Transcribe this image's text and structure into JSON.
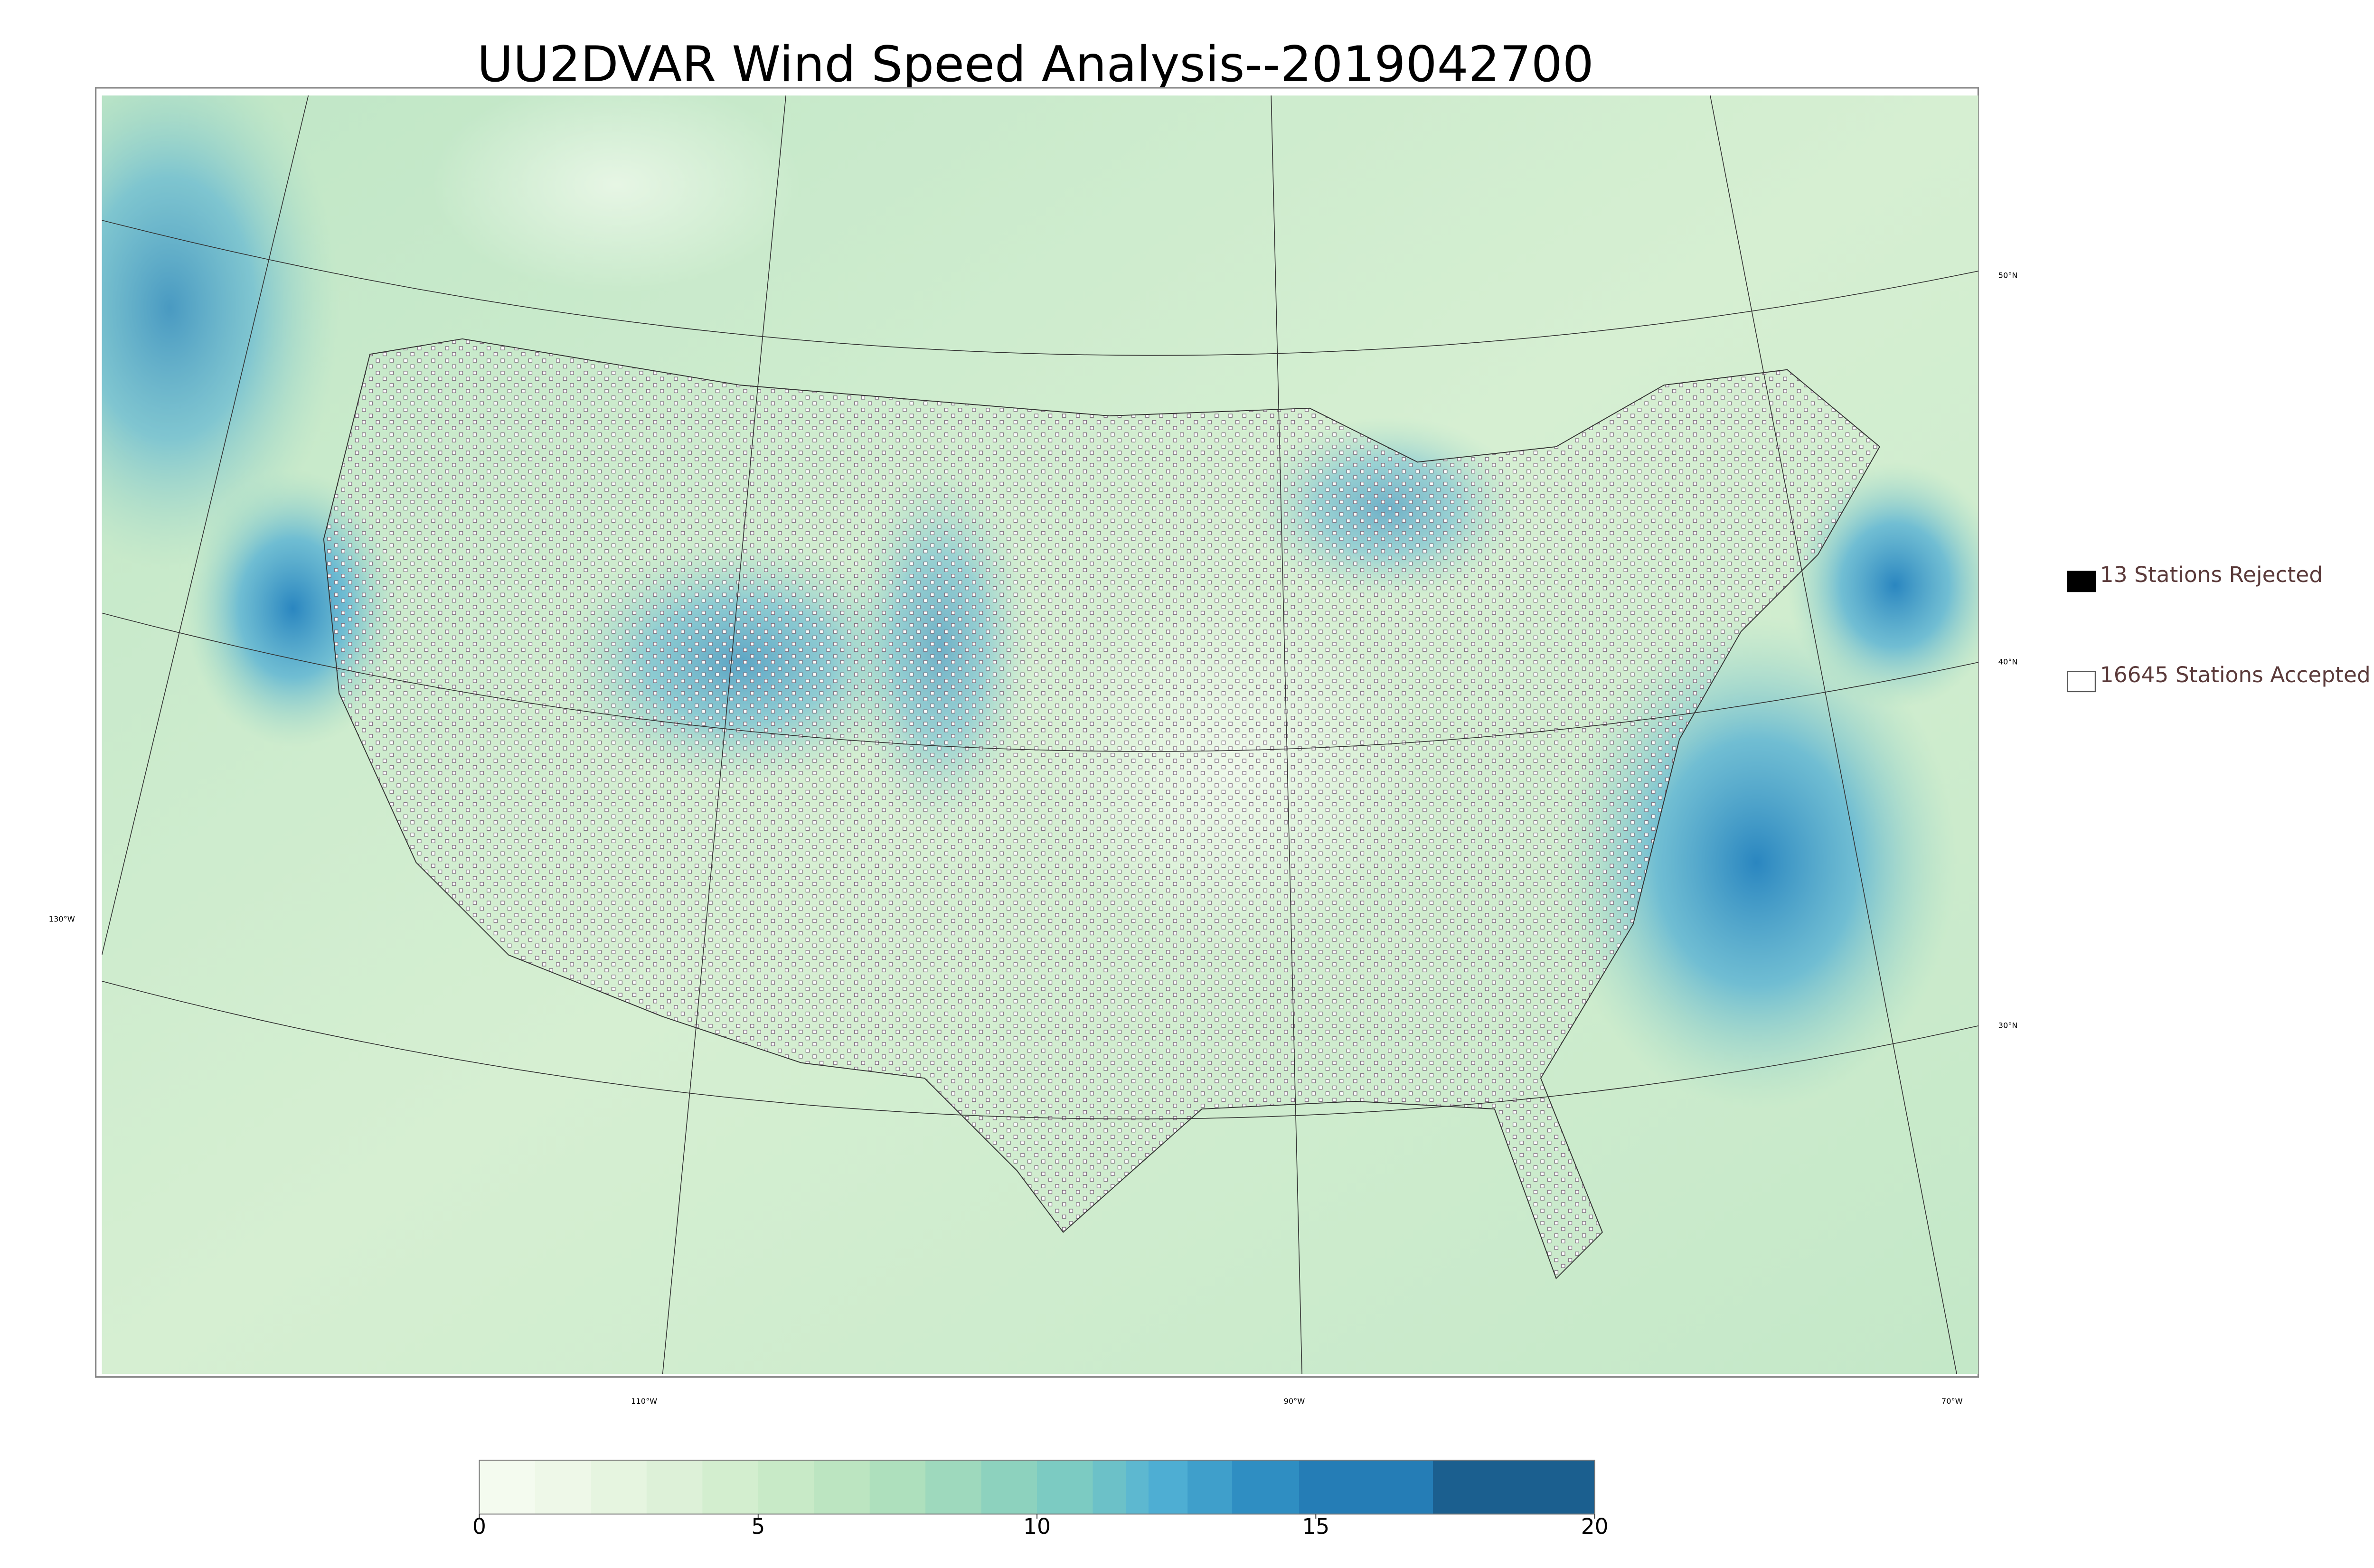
{
  "title": "UU2DVAR Wind Speed Analysis--2019042700",
  "legend": [
    {
      "label": "13 Stations Rejected",
      "color": "#000000",
      "filled": true
    },
    {
      "label": "16645 Stations Accepted",
      "color": "#555555",
      "filled": false
    }
  ],
  "colorbar": {
    "lim": [
      0,
      20
    ],
    "ticks": [
      0,
      5,
      10,
      15,
      20
    ],
    "levels": [
      0,
      1,
      2,
      3,
      4,
      5,
      6,
      7,
      8,
      9,
      10,
      11,
      11.6,
      12,
      12.7,
      13.5,
      14.7,
      17.1,
      20
    ],
    "colors": [
      "#f4fbef",
      "#eef8e8",
      "#e6f5e0",
      "#ddf1d8",
      "#d3eecf",
      "#c8eac7",
      "#bce5c1",
      "#aee0bd",
      "#9ed9bd",
      "#8dd2be",
      "#7ccbc2",
      "#6cc1c8",
      "#5db8d0",
      "#4eaed3",
      "#3f9fcb",
      "#2f8ec2",
      "#257db6",
      "#1b5f8f"
    ]
  },
  "graticule": {
    "lat_labels": [
      "50°N",
      "40°N",
      "30°N"
    ],
    "lon_labels": [
      "130°W",
      "110°W",
      "90°W",
      "70°W"
    ]
  }
}
